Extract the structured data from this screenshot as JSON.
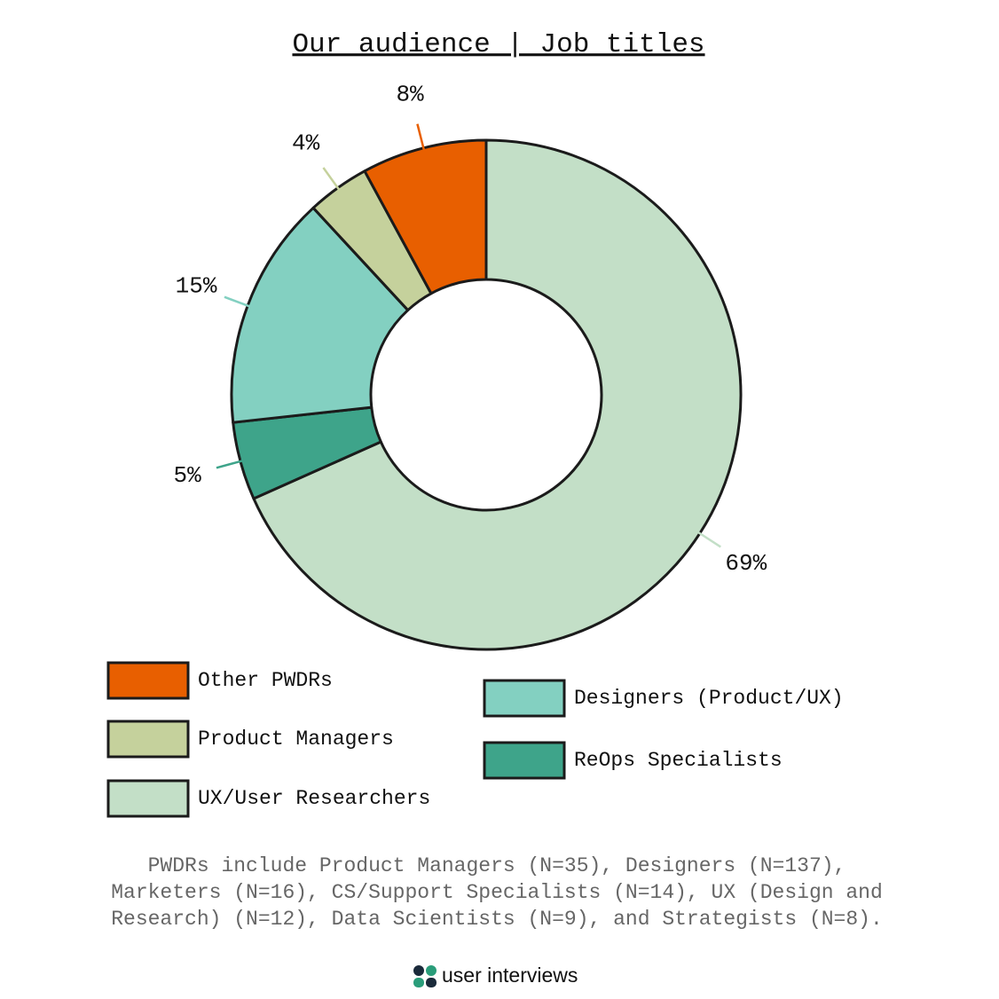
{
  "chart_data": {
    "type": "pie",
    "title": "Our audience | Job titles",
    "categories": [
      "UX/User Researchers",
      "ReOps Specialists",
      "Designers (Product/UX)",
      "Product Managers",
      "Other PWDRs"
    ],
    "values": [
      69,
      5,
      15,
      4,
      8
    ],
    "value_labels": [
      "69%",
      "5%",
      "15%",
      "4%",
      "8%"
    ],
    "colors": [
      "#c3dfc7",
      "#3ea48a",
      "#83d0c1",
      "#c5d19c",
      "#e85f00"
    ],
    "footnote": [
      "PWDRs include Product Managers (N=35), Designers (N=137),",
      "Marketers (N=16), CS/Support Specialists (N=14), UX (Design and",
      "Research) (N=12), Data Scientists (N=9), and Strategists (N=8)."
    ],
    "brand": "user interviews"
  }
}
